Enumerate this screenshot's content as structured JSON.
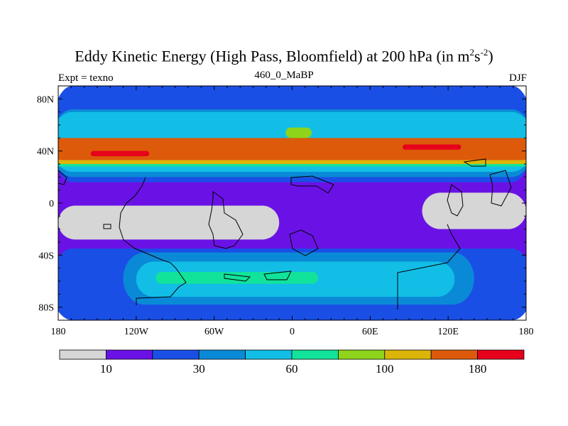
{
  "title": {
    "main": "Eddy Kinetic Energy (High Pass, Bloomfield) at 200 hPa (in m",
    "sup1": "2",
    "mid": "s",
    "sup2": "-2",
    "close": ")"
  },
  "subtitle": {
    "left": "Expt = texno",
    "center": "460_0_MaBP",
    "right": "DJF"
  },
  "chart_data": {
    "type": "heatmap",
    "title": "Eddy Kinetic Energy (High Pass, Bloomfield) at 200 hPa (in m^2 s^-2)",
    "experiment": "texno",
    "case": "460_0_MaBP",
    "season": "DJF",
    "x_ticks": [
      "180",
      "120W",
      "60W",
      "0",
      "60E",
      "120E",
      "180"
    ],
    "x_values": [
      -180,
      -120,
      -60,
      0,
      60,
      120,
      180
    ],
    "y_ticks": [
      "80N",
      "40N",
      "0",
      "40S",
      "80S"
    ],
    "y_values": [
      80,
      40,
      0,
      -40,
      -80
    ],
    "xlim": [
      -180,
      180
    ],
    "ylim": [
      -90,
      90
    ],
    "colorbar": {
      "colors": [
        "#d6d6d6",
        "#6a12e6",
        "#1a4fe6",
        "#0a8ad6",
        "#12bee6",
        "#12e39a",
        "#8ed41a",
        "#dcb40a",
        "#dc5a0a",
        "#e6001c"
      ],
      "boundaries": [
        5,
        10,
        20,
        30,
        45,
        60,
        80,
        100,
        140,
        180
      ],
      "labels": [
        "10",
        "30",
        "60",
        "100",
        "180"
      ],
      "label_bounds": [
        1,
        3,
        5,
        7,
        9
      ]
    },
    "regions": [
      {
        "level": 1,
        "lon": [
          -180,
          180
        ],
        "lat": [
          -90,
          90
        ]
      },
      {
        "level": 2,
        "lon": [
          -180,
          180
        ],
        "lat": [
          16,
          90
        ]
      },
      {
        "level": 2,
        "lon": [
          -180,
          180
        ],
        "lat": [
          -90,
          -35
        ]
      },
      {
        "level": 3,
        "lon": [
          -180,
          180
        ],
        "lat": [
          20,
          72
        ]
      },
      {
        "level": 3,
        "lon": [
          -130,
          140
        ],
        "lat": [
          -78,
          -38
        ]
      },
      {
        "level": 4,
        "lon": [
          -180,
          180
        ],
        "lat": [
          24,
          70
        ]
      },
      {
        "level": 4,
        "lon": [
          -120,
          125
        ],
        "lat": [
          -72,
          -45
        ]
      },
      {
        "level": 5,
        "lon": [
          -180,
          180
        ],
        "lat": [
          28,
          44
        ]
      },
      {
        "level": 5,
        "lon": [
          -105,
          20
        ],
        "lat": [
          -62,
          -53
        ]
      },
      {
        "level": 6,
        "lon": [
          -5,
          15
        ],
        "lat": [
          50,
          58
        ]
      },
      {
        "level": 7,
        "lon": [
          -180,
          180
        ],
        "lat": [
          30,
          44
        ]
      },
      {
        "level": 8,
        "lon": [
          -180,
          180
        ],
        "lat": [
          33,
          50
        ]
      },
      {
        "level": 9,
        "lon": [
          -155,
          -110
        ],
        "lat": [
          36,
          40
        ]
      },
      {
        "level": 9,
        "lon": [
          85,
          130
        ],
        "lat": [
          41,
          45
        ]
      },
      {
        "level": 0,
        "lon": [
          -180,
          -10
        ],
        "lat": [
          -28,
          -2
        ]
      },
      {
        "level": 0,
        "lon": [
          100,
          180
        ],
        "lat": [
          -20,
          8
        ]
      }
    ]
  }
}
